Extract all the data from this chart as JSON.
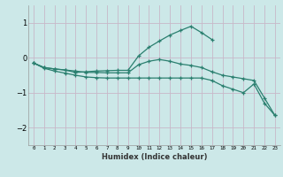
{
  "xlabel": "Humidex (Indice chaleur)",
  "x": [
    0,
    1,
    2,
    3,
    4,
    5,
    6,
    7,
    8,
    9,
    10,
    11,
    12,
    13,
    14,
    15,
    16,
    17,
    18,
    19,
    20,
    21,
    22,
    23
  ],
  "line1": [
    -0.15,
    -0.28,
    -0.32,
    -0.35,
    -0.42,
    -0.4,
    -0.38,
    -0.37,
    -0.36,
    -0.36,
    0.05,
    0.3,
    0.48,
    0.65,
    0.78,
    0.9,
    0.72,
    0.52,
    null,
    null,
    null,
    null,
    null,
    null
  ],
  "line2": [
    -0.15,
    -0.28,
    -0.32,
    -0.35,
    -0.38,
    -0.42,
    -0.42,
    -0.43,
    -0.43,
    -0.43,
    -0.2,
    -0.1,
    -0.05,
    -0.1,
    -0.18,
    -0.22,
    -0.28,
    -0.4,
    -0.5,
    -0.55,
    -0.6,
    -0.65,
    -1.15,
    -1.65
  ],
  "line3": [
    -0.15,
    -0.3,
    -0.38,
    -0.44,
    -0.5,
    -0.55,
    -0.57,
    -0.58,
    -0.58,
    -0.58,
    -0.58,
    -0.58,
    -0.58,
    -0.58,
    -0.58,
    -0.58,
    -0.58,
    -0.65,
    -0.8,
    -0.9,
    -1.0,
    -0.75,
    -1.3,
    -1.65
  ],
  "line_color": "#2a7f6f",
  "bg_color": "#cce8e8",
  "grid_color": "#c8b8c8",
  "xlim": [
    -0.5,
    23.5
  ],
  "ylim": [
    -2.5,
    1.5
  ],
  "yticks": [
    -2,
    -1,
    0,
    1
  ],
  "xtick_labels": [
    "0",
    "1",
    "2",
    "3",
    "4",
    "5",
    "6",
    "7",
    "8",
    "9",
    "10",
    "11",
    "12",
    "13",
    "14",
    "15",
    "16",
    "17",
    "18",
    "19",
    "20",
    "21",
    "22",
    "23"
  ]
}
